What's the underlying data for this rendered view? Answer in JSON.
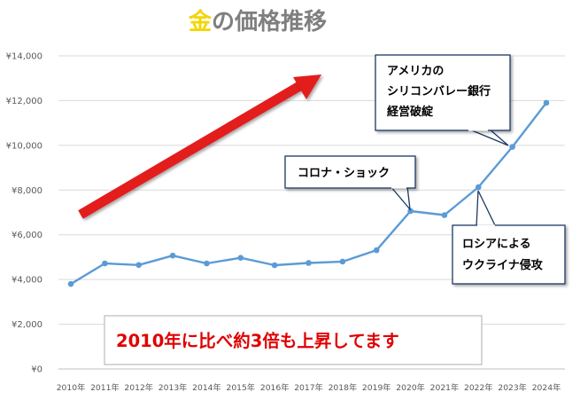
{
  "chart_data": {
    "type": "line",
    "title_accent": "金",
    "title_rest": "の価格推移",
    "categories": [
      "2010年",
      "2011年",
      "2012年",
      "2013年",
      "2014年",
      "2015年",
      "2016年",
      "2017年",
      "2018年",
      "2019年",
      "2020年",
      "2021年",
      "2022年",
      "2023年",
      "2024年"
    ],
    "series": [
      {
        "values": [
          3800,
          4720,
          4650,
          5070,
          4720,
          4970,
          4640,
          4740,
          4800,
          5310,
          7060,
          6880,
          8130,
          9930,
          11900
        ]
      }
    ],
    "ylim": [
      0,
      14000
    ],
    "yticks": [
      0,
      2000,
      4000,
      6000,
      8000,
      10000,
      12000,
      14000
    ],
    "ytick_labels": [
      "¥0",
      "¥2,000",
      "¥4,000",
      "¥6,000",
      "¥8,000",
      "¥10,000",
      "¥12,000",
      "¥14,000"
    ],
    "grid": true,
    "line_color": "#5b9bd5",
    "annotations": {
      "corona": "コロナ・ショック",
      "russia_line1": "ロシアによる",
      "russia_line2": "ウクライナ侵攻",
      "svb_line1": "アメリカの",
      "svb_line2": "シリコンバレー銀行",
      "svb_line3": "経営破綻"
    },
    "banner": "2010年に比べ約3倍も上昇してます",
    "arrow_color": "#e31c1c"
  }
}
